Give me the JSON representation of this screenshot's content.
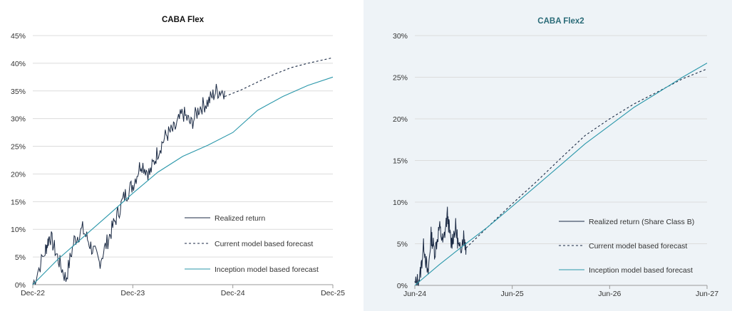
{
  "colors": {
    "realized": "#1b2a44",
    "current_forecast": "#1b2a44",
    "inception_forecast": "#2a97aa",
    "grid": "#dcdcdc",
    "title_left": "#111111",
    "title_right": "#2a6b78",
    "panel_right_bg": "#eef3f7"
  },
  "chart_data": [
    {
      "type": "line",
      "title": "CABA Flex",
      "x_ticks": [
        "Dec-22",
        "Dec-23",
        "Dec-24",
        "Dec-25"
      ],
      "xlim": [
        "2022-12-01",
        "2025-12-01"
      ],
      "y_ticks": [
        "0%",
        "5%",
        "10%",
        "15%",
        "20%",
        "25%",
        "30%",
        "35%",
        "40%",
        "45%"
      ],
      "ylim": [
        0,
        45
      ],
      "grid": "horizontal",
      "legend_position": "bottom-right",
      "series": [
        {
          "name": "Realized return",
          "style": "solid",
          "x": [
            "2022-12-01",
            "2023-01-15",
            "2023-02-01",
            "2023-03-01",
            "2023-04-01",
            "2023-05-01",
            "2023-06-01",
            "2023-07-01",
            "2023-08-01",
            "2023-09-01",
            "2023-10-01",
            "2023-11-01",
            "2023-12-01",
            "2024-01-01",
            "2024-02-01",
            "2024-03-01",
            "2024-04-01",
            "2024-05-01",
            "2024-06-01",
            "2024-07-01",
            "2024-08-01",
            "2024-09-01",
            "2024-10-01",
            "2024-11-01"
          ],
          "y": [
            0,
            6,
            9,
            5,
            1,
            8,
            10,
            7,
            4,
            8,
            12,
            16,
            18,
            22,
            20,
            24,
            27,
            28,
            31,
            29,
            32,
            33,
            35,
            35
          ]
        },
        {
          "name": "Current model based forecast",
          "style": "dashed",
          "x": [
            "2024-11-01",
            "2025-01-01",
            "2025-03-01",
            "2025-05-01",
            "2025-07-01",
            "2025-09-01",
            "2025-12-01"
          ],
          "y": [
            34,
            35.2,
            36.6,
            38.0,
            39.2,
            40.0,
            41
          ]
        },
        {
          "name": "Inception model based forecast",
          "style": "solid",
          "x": [
            "2022-12-01",
            "2023-03-01",
            "2023-06-01",
            "2023-09-01",
            "2023-12-01",
            "2024-03-01",
            "2024-06-01",
            "2024-09-01",
            "2024-12-01",
            "2025-03-01",
            "2025-06-01",
            "2025-09-01",
            "2025-12-01"
          ],
          "y": [
            0,
            4.5,
            8.5,
            12.5,
            16.5,
            20.3,
            23.2,
            25.2,
            27.5,
            31.5,
            34.0,
            36.0,
            37.5
          ]
        }
      ]
    },
    {
      "type": "line",
      "title": "CABA Flex2",
      "x_ticks": [
        "Jun-24",
        "Jun-25",
        "Jun-26",
        "Jun-27"
      ],
      "xlim": [
        "2024-06-01",
        "2027-06-01"
      ],
      "y_ticks": [
        "0%",
        "5%",
        "10%",
        "15%",
        "20%",
        "25%",
        "30%"
      ],
      "ylim": [
        0,
        30
      ],
      "grid": "horizontal",
      "legend_position": "bottom-right",
      "series": [
        {
          "name": "Realized return (Share Class B)",
          "style": "solid",
          "x": [
            "2024-06-01",
            "2024-06-20",
            "2024-07-05",
            "2024-07-20",
            "2024-08-01",
            "2024-08-15",
            "2024-09-01",
            "2024-09-15",
            "2024-10-01",
            "2024-10-15",
            "2024-11-01",
            "2024-11-15",
            "2024-12-01",
            "2024-12-10"
          ],
          "y": [
            0,
            1,
            5,
            1,
            6,
            4,
            7,
            5,
            8.5,
            5,
            7,
            4,
            6,
            4.5
          ]
        },
        {
          "name": "Current model based forecast",
          "style": "dashed",
          "x": [
            "2024-12-10",
            "2025-03-01",
            "2025-06-01",
            "2025-09-01",
            "2025-12-01",
            "2026-03-01",
            "2026-06-01",
            "2026-09-01",
            "2026-12-01",
            "2027-03-01",
            "2027-06-01"
          ],
          "y": [
            4.5,
            7.0,
            9.8,
            12.5,
            15.3,
            18.0,
            20.0,
            21.8,
            23.3,
            24.8,
            26
          ]
        },
        {
          "name": "Inception model based forecast",
          "style": "solid",
          "x": [
            "2024-06-01",
            "2024-09-01",
            "2024-12-01",
            "2025-03-01",
            "2025-06-01",
            "2025-09-01",
            "2025-12-01",
            "2026-03-01",
            "2026-06-01",
            "2026-09-01",
            "2026-12-01",
            "2027-03-01",
            "2027-06-01"
          ],
          "y": [
            0,
            2.5,
            4.8,
            7.0,
            9.5,
            12.0,
            14.5,
            17.0,
            19.2,
            21.4,
            23.2,
            25.0,
            26.7
          ]
        }
      ]
    }
  ]
}
